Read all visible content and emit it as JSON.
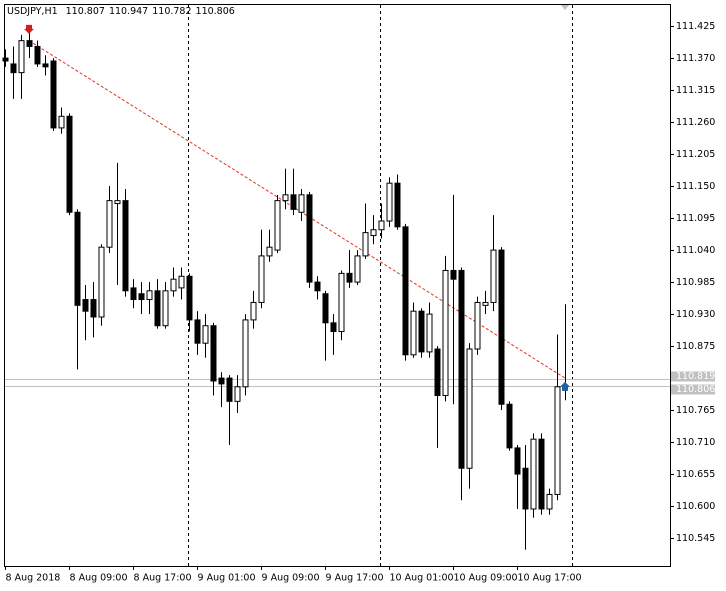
{
  "chart_data": {
    "type": "candlestick",
    "title": "USDJPY,H1",
    "header_values": [
      110.807,
      110.947,
      110.782,
      110.806
    ],
    "categories": [
      "8 Aug 2018",
      null,
      null,
      null,
      null,
      null,
      null,
      null,
      "8 Aug 09:00",
      null,
      null,
      null,
      null,
      null,
      null,
      null,
      "8 Aug 17:00",
      null,
      null,
      null,
      null,
      null,
      null,
      null,
      "9 Aug 01:00",
      null,
      null,
      null,
      null,
      null,
      null,
      null,
      "9 Aug 09:00",
      null,
      null,
      null,
      null,
      null,
      null,
      null,
      "9 Aug 17:00",
      null,
      null,
      null,
      null,
      null,
      null,
      null,
      "10 Aug 01:00",
      null,
      null,
      null,
      null,
      null,
      null,
      null,
      "10 Aug 09:00",
      null,
      null,
      null,
      null,
      null,
      null,
      null,
      "10 Aug 17:00",
      null,
      null,
      null,
      null,
      null,
      null
    ],
    "open": [
      111.37,
      111.36,
      111.345,
      111.4,
      111.39,
      111.36,
      111.365,
      111.25,
      111.27,
      111.105,
      110.955,
      110.955,
      110.925,
      111.045,
      111.12,
      111.125,
      110.975,
      110.965,
      110.955,
      110.97,
      110.91,
      110.97,
      110.975,
      110.995,
      110.92,
      110.88,
      110.91,
      110.82,
      110.82,
      110.78,
      110.805,
      110.92,
      110.95,
      111.03,
      111.04,
      111.125,
      111.135,
      111.105,
      111.135,
      110.985,
      110.965,
      110.915,
      110.9,
      111.0,
      110.985,
      111.03,
      111.065,
      111.075,
      111.09,
      111.155,
      111.08,
      110.86,
      110.935,
      110.865,
      110.87,
      110.79,
      111.005,
      111.005,
      110.665,
      110.87,
      110.945,
      110.95,
      111.04,
      110.775,
      110.7,
      110.665,
      110.595,
      110.715,
      110.595,
      110.62,
      110.807
    ],
    "high": [
      111.385,
      111.39,
      111.41,
      111.415,
      111.4,
      111.375,
      111.37,
      111.285,
      111.275,
      111.11,
      110.98,
      110.985,
      111.05,
      111.15,
      111.19,
      111.145,
      110.99,
      110.985,
      110.985,
      110.99,
      110.985,
      111.01,
      111.01,
      111.0,
      110.935,
      110.93,
      110.915,
      110.83,
      110.825,
      110.825,
      110.93,
      110.97,
      111.075,
      111.075,
      111.135,
      111.18,
      111.18,
      111.145,
      111.14,
      110.995,
      110.97,
      110.93,
      111.005,
      111.04,
      111.04,
      111.12,
      111.1,
      111.12,
      111.165,
      111.17,
      111.085,
      110.95,
      110.94,
      110.95,
      110.875,
      111.03,
      111.135,
      111.01,
      110.88,
      110.96,
      110.97,
      111.1,
      111.045,
      110.78,
      110.705,
      110.705,
      110.725,
      110.725,
      110.63,
      110.895,
      110.947
    ],
    "low": [
      111.355,
      111.3,
      111.3,
      111.37,
      111.355,
      111.34,
      111.245,
      111.24,
      111.1,
      110.835,
      110.885,
      110.89,
      110.91,
      111.035,
      110.98,
      110.96,
      110.94,
      110.93,
      110.93,
      110.905,
      110.905,
      110.96,
      110.955,
      110.9,
      110.86,
      110.855,
      110.79,
      110.77,
      110.705,
      110.76,
      110.79,
      110.905,
      110.94,
      111.02,
      111.035,
      111.11,
      111.1,
      111.09,
      110.975,
      110.955,
      110.85,
      110.86,
      110.885,
      110.975,
      110.98,
      111.025,
      111.05,
      111.06,
      111.08,
      111.075,
      110.85,
      110.855,
      110.855,
      110.855,
      110.7,
      110.78,
      110.775,
      110.61,
      110.63,
      110.86,
      110.93,
      110.935,
      110.765,
      110.695,
      110.595,
      110.525,
      110.58,
      110.585,
      110.585,
      110.61,
      110.782
    ],
    "close": [
      111.365,
      111.345,
      111.4,
      111.39,
      111.36,
      111.355,
      111.25,
      111.27,
      111.105,
      110.945,
      110.935,
      110.925,
      111.045,
      111.125,
      111.125,
      110.97,
      110.955,
      110.955,
      110.97,
      110.91,
      110.97,
      110.99,
      110.995,
      110.92,
      110.88,
      110.91,
      110.815,
      110.81,
      110.78,
      110.805,
      110.92,
      110.95,
      111.03,
      111.045,
      111.125,
      111.135,
      111.11,
      111.135,
      110.985,
      110.97,
      110.915,
      110.9,
      111.0,
      110.985,
      111.03,
      111.07,
      111.075,
      111.09,
      111.155,
      111.08,
      110.86,
      110.935,
      110.865,
      110.93,
      110.79,
      111.005,
      110.99,
      110.665,
      110.87,
      110.95,
      110.95,
      111.04,
      110.775,
      110.7,
      110.655,
      110.595,
      110.715,
      110.595,
      110.62,
      110.805,
      110.806
    ],
    "bull_color": "#ffffff",
    "bear_color": "#000000",
    "ylim": [
      110.497,
      111.463
    ],
    "yticks": [
      111.425,
      {
        "value": 111.37,
        "label": "111.370"
      },
      111.315,
      {
        "value": 111.26,
        "label": "111.260"
      },
      111.205,
      {
        "value": 111.15,
        "label": "111.150"
      },
      111.095,
      {
        "value": 111.04,
        "label": "111.040"
      },
      110.985,
      {
        "value": 110.93,
        "label": "110.930"
      },
      110.875,
      110.765,
      {
        "value": 110.71,
        "label": "110.710"
      },
      110.655,
      {
        "value": 110.6,
        "label": "110.600"
      },
      110.545
    ],
    "price_lines": [
      110.819,
      110.806
    ],
    "trend_line": {
      "x": [
        3,
        70
      ],
      "y": [
        111.4,
        110.82
      ],
      "color": "#e0341c"
    },
    "arrows": [
      {
        "x": 3,
        "y": 111.415,
        "color": "#d0201a",
        "direction": "down"
      },
      {
        "x": 70,
        "y": 110.81,
        "color": "#1f5fa8",
        "direction": "up"
      }
    ]
  }
}
